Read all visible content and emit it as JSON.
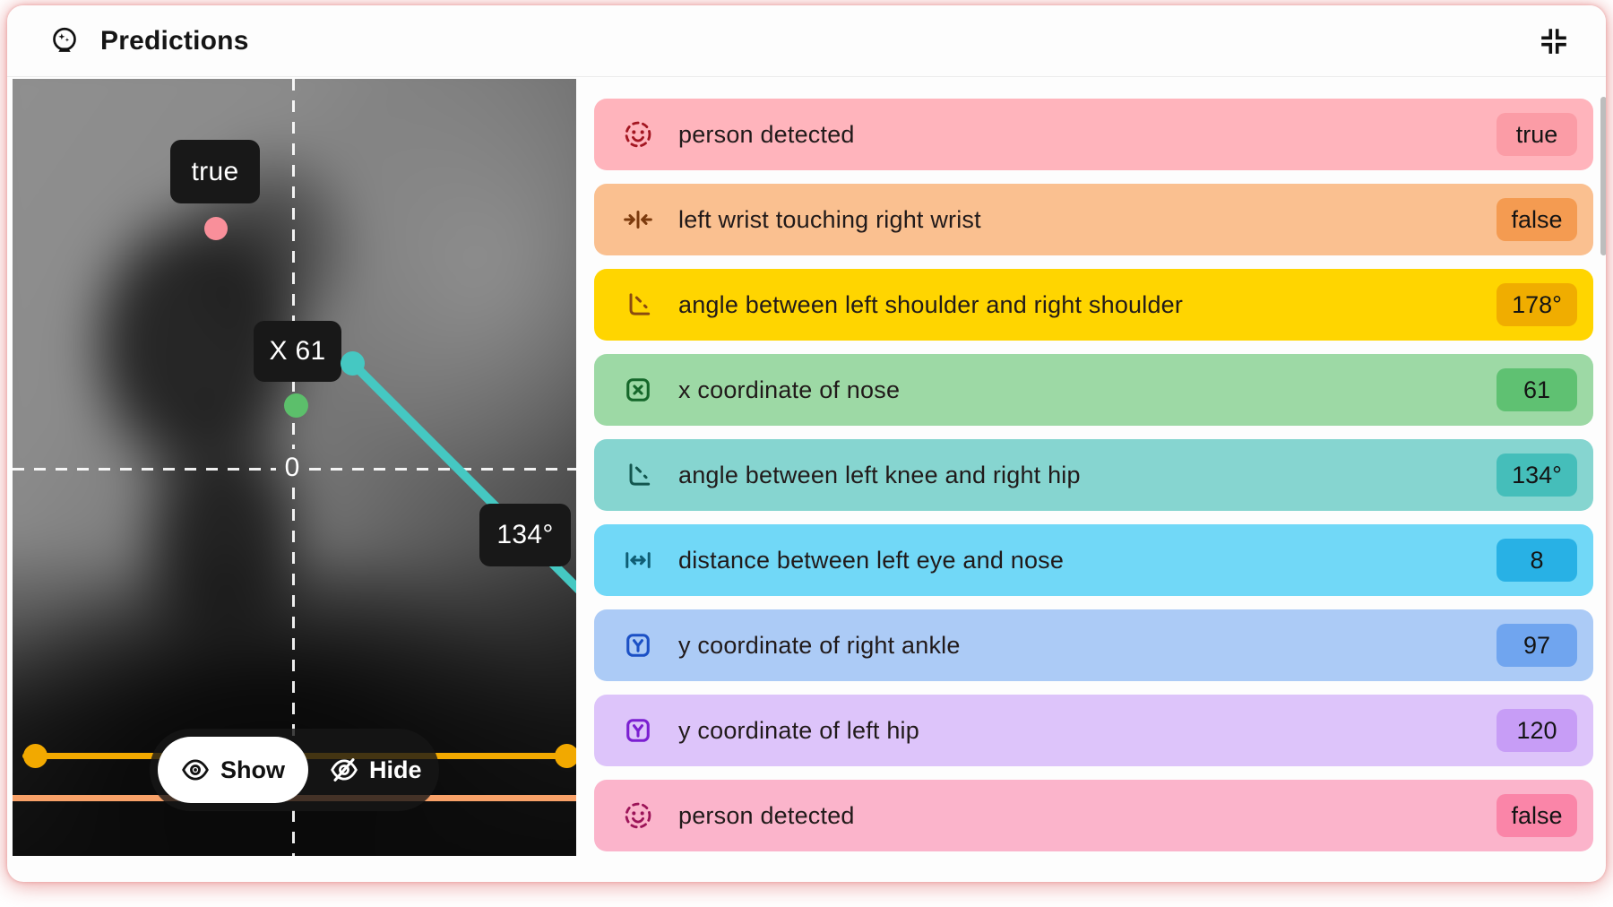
{
  "header": {
    "title": "Predictions"
  },
  "viewer": {
    "origin_label": "0",
    "tooltips": {
      "person_true": "true",
      "nose_x": "X 61",
      "angle": "134°"
    },
    "controls": {
      "show": "Show",
      "hide": "Hide"
    },
    "colors": {
      "keypoint_pink": "#F98F9A",
      "keypoint_green": "#5CBF6B",
      "line_teal": "#45C8C2",
      "line_amber": "#F2A900",
      "line_orange": "#F8A168"
    }
  },
  "predictions": [
    {
      "icon": "person-icon",
      "label": "person detected",
      "value": "true",
      "row_bg": "#FFB4BC",
      "badge_bg": "#FB9CA6",
      "icon_color": "#A31621"
    },
    {
      "icon": "touch-icon",
      "label": "left wrist touching right wrist",
      "value": "false",
      "row_bg": "#FAC090",
      "badge_bg": "#F49B51",
      "icon_color": "#7C3A0D"
    },
    {
      "icon": "angle-icon",
      "label": "angle between left shoulder and right shoulder",
      "value": "178°",
      "row_bg": "#FFD500",
      "badge_bg": "#F0AD00",
      "icon_color": "#8A4B10"
    },
    {
      "icon": "x-icon",
      "label": "x coordinate of nose",
      "value": "61",
      "row_bg": "#9DD9A5",
      "badge_bg": "#5FC172",
      "icon_color": "#15672A"
    },
    {
      "icon": "angle-icon",
      "label": "angle between left knee and right hip",
      "value": "134°",
      "row_bg": "#86D5D0",
      "badge_bg": "#45BEBA",
      "icon_color": "#12564E"
    },
    {
      "icon": "distance-icon",
      "label": "distance between left eye and nose",
      "value": "8",
      "row_bg": "#71D8F7",
      "badge_bg": "#28B1E5",
      "icon_color": "#0F5E75"
    },
    {
      "icon": "y-icon",
      "label": "y coordinate of right ankle",
      "value": "97",
      "row_bg": "#ACCBF6",
      "badge_bg": "#70A5EF",
      "icon_color": "#1B50C5"
    },
    {
      "icon": "y-icon",
      "label": "y coordinate of left hip",
      "value": "120",
      "row_bg": "#DDC4FA",
      "badge_bg": "#C79DF6",
      "icon_color": "#7B1FD1"
    },
    {
      "icon": "person-icon",
      "label": "person detected",
      "value": "false",
      "row_bg": "#FBB4CB",
      "badge_bg": "#FA85A8",
      "icon_color": "#9C1458"
    }
  ]
}
